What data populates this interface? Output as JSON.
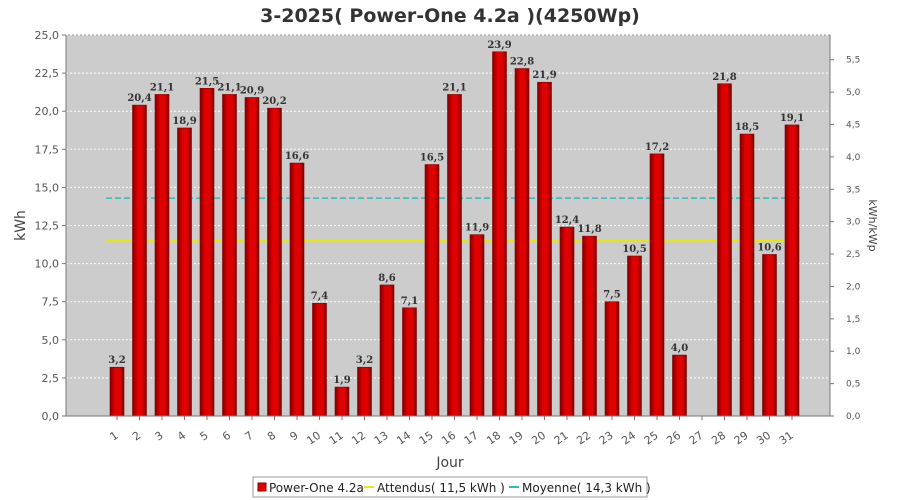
{
  "colors": {
    "bar": "#e00000",
    "bar_dark": "#7a0000",
    "plot_bg": "#cccccc",
    "expected_line": "#e8e800",
    "mean_line": "#33bbbb"
  },
  "chart_data": {
    "type": "bar",
    "title": "3-2025( Power-One 4.2a )(4250Wp)",
    "xlabel": "Jour",
    "ylabel": "kWh",
    "ylabel_right": "kWh/kWp",
    "ylim": [
      0,
      25
    ],
    "ylim_right": [
      0,
      5.882
    ],
    "y_ticks": [
      "0,0",
      "2,5",
      "5,0",
      "7,5",
      "10,0",
      "12,5",
      "15,0",
      "17,5",
      "20,0",
      "22,5",
      "25,0"
    ],
    "y_ticks_right": [
      "0,0",
      "0,5",
      "1,0",
      "1,5",
      "2,0",
      "2,5",
      "3,0",
      "3,5",
      "4,0",
      "4,5",
      "5,0",
      "5,5"
    ],
    "grid": true,
    "legend_position": "bottom",
    "categories": [
      "1",
      "2",
      "3",
      "4",
      "5",
      "6",
      "7",
      "8",
      "9",
      "10",
      "11",
      "12",
      "13",
      "14",
      "15",
      "16",
      "17",
      "18",
      "19",
      "20",
      "21",
      "22",
      "23",
      "24",
      "25",
      "26",
      "27",
      "28",
      "29",
      "30",
      "31"
    ],
    "series": [
      {
        "name": "Power-One 4.2a",
        "values": [
          3.2,
          20.4,
          21.1,
          18.9,
          21.5,
          21.1,
          20.9,
          20.2,
          16.6,
          7.4,
          1.9,
          3.2,
          8.6,
          7.1,
          16.5,
          21.1,
          11.9,
          23.9,
          22.8,
          21.9,
          12.4,
          11.8,
          7.5,
          10.5,
          17.2,
          4.0,
          null,
          21.8,
          18.5,
          10.6,
          19.1
        ],
        "labels": [
          "3,2",
          "20,4",
          "21,1",
          "18,9",
          "21,5",
          "21,1",
          "20,9",
          "20,2",
          "16,6",
          "7,4",
          "1,9",
          "3,2",
          "8,6",
          "7,1",
          "16,5",
          "21,1",
          "11,9",
          "23,9",
          "22,8",
          "21,9",
          "12,4",
          "11,8",
          "7,5",
          "10,5",
          "17,2",
          "4,0",
          "",
          "21,8",
          "18,5",
          "10,6",
          "19,1"
        ]
      }
    ],
    "reference_lines": [
      {
        "name": "Attendus( 11,5 kWh )",
        "value": 11.5
      },
      {
        "name": "Moyenne( 14,3 kWh )",
        "value": 14.3
      }
    ]
  }
}
